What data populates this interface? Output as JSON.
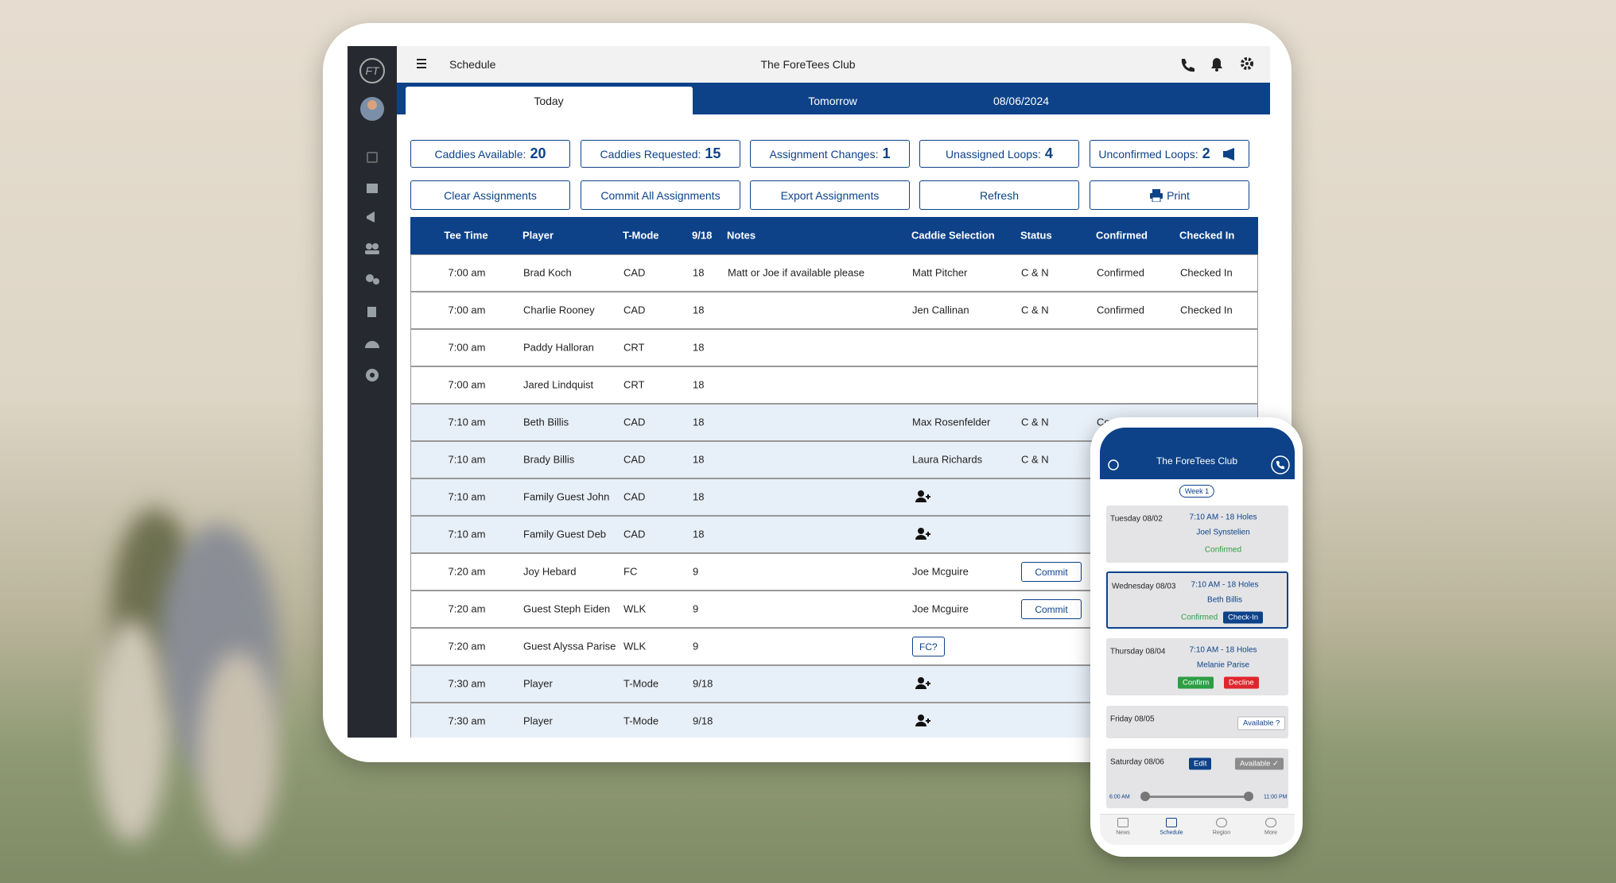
{
  "header": {
    "title": "Schedule",
    "club": "The ForeTees Club"
  },
  "tabs": [
    "Today",
    "Tomorrow",
    "08/06/2024"
  ],
  "stats": [
    {
      "label": "Caddies Available:",
      "value": 20
    },
    {
      "label": "Caddies Requested:",
      "value": 15
    },
    {
      "label": "Assignment Changes:",
      "value": 1
    },
    {
      "label": "Unassigned Loops:",
      "value": 4
    },
    {
      "label": "Unconfirmed Loops:",
      "value": 2
    }
  ],
  "actions": [
    "Clear Assignments",
    "Commit All Assignments",
    "Export Assignments",
    "Refresh",
    "Print"
  ],
  "table": {
    "columns": {
      "time": "Tee Time",
      "player": "Player",
      "mode": "T-Mode",
      "holes": "9/18",
      "notes": "Notes",
      "caddie": "Caddie Selection",
      "status": "Status",
      "confirmed": "Confirmed",
      "checked_in": "Checked In"
    },
    "rows": [
      {
        "time": "7:00 am",
        "player": "Brad Koch",
        "mode": "CAD",
        "holes": "18",
        "notes": "Matt or Joe if available please",
        "caddie": "Matt Pitcher",
        "status": "C & N",
        "confirmed": "Confirmed",
        "checked_in": "Checked In"
      },
      {
        "time": "7:00 am",
        "player": "Charlie Rooney",
        "mode": "CAD",
        "holes": "18",
        "caddie": "Jen Callinan",
        "status": "C & N",
        "confirmed": "Confirmed",
        "checked_in": "Checked In"
      },
      {
        "time": "7:00 am",
        "player": "Paddy Halloran",
        "mode": "CRT",
        "holes": "18"
      },
      {
        "time": "7:00 am",
        "player": "Jared Lindquist",
        "mode": "CRT",
        "holes": "18"
      },
      {
        "time": "7:10 am",
        "player": "Beth Billis",
        "mode": "CAD",
        "holes": "18",
        "caddie": "Max Rosenfelder",
        "status": "C & N",
        "confirmed": "Confirmed",
        "highlight": true
      },
      {
        "time": "7:10 am",
        "player": "Brady Billis",
        "mode": "CAD",
        "holes": "18",
        "caddie": "Laura Richards",
        "status": "C & N",
        "highlight": true
      },
      {
        "time": "7:10 am",
        "player": "Family Guest John",
        "mode": "CAD",
        "holes": "18",
        "add_caddie": true,
        "highlight": true
      },
      {
        "time": "7:10 am",
        "player": "Family Guest Deb",
        "mode": "CAD",
        "holes": "18",
        "add_caddie": true,
        "highlight": true
      },
      {
        "time": "7:20 am",
        "player": "Joy Hebard",
        "mode": "FC",
        "holes": "9",
        "caddie": "Joe Mcguire",
        "status_button": "Commit"
      },
      {
        "time": "7:20 am",
        "player": "Guest Steph Eiden",
        "mode": "WLK",
        "holes": "9",
        "caddie": "Joe Mcguire",
        "status_button": "Commit"
      },
      {
        "time": "7:20 am",
        "player": "Guest Alyssa Parise",
        "mode": "WLK",
        "holes": "9",
        "caddie_button": "FC?"
      },
      {
        "time": "7:30 am",
        "player": "Player",
        "mode": "T-Mode",
        "holes": "9/18",
        "add_caddie": true,
        "highlight": true
      },
      {
        "time": "7:30 am",
        "player": "Player",
        "mode": "T-Mode",
        "holes": "9/18",
        "add_caddie": true,
        "highlight": true
      }
    ]
  },
  "phone": {
    "club": "The ForeTees Club",
    "week": "Week 1",
    "cards": [
      {
        "day": "Tuesday 08/02",
        "time": "7:10 AM - 18 Holes",
        "name": "Joel Synstelien",
        "status": "Confirmed"
      },
      {
        "day": "Wednesday 08/03",
        "time": "7:10 AM - 18 Holes",
        "name": "Beth Billis",
        "status": "Confirmed",
        "buttons": [
          {
            "text": "Check-In",
            "style": "blue"
          }
        ],
        "selected": true
      },
      {
        "day": "Thursday 08/04",
        "time": "7:10 AM - 18 Holes",
        "name": "Melanie Parise",
        "buttons": [
          {
            "text": "Confirm",
            "style": "green"
          },
          {
            "text": "Decline",
            "style": "red"
          }
        ]
      },
      {
        "day": "Friday 08/05",
        "buttons": [
          {
            "text": "Available ?",
            "style": "outline"
          }
        ]
      },
      {
        "day": "Saturday 08/06",
        "buttons": [
          {
            "text": "Edit",
            "style": "blue"
          },
          {
            "text": "Available ✓",
            "style": "gray"
          }
        ],
        "slider": [
          "6:00 AM",
          "11:00 PM"
        ]
      }
    ],
    "nav": [
      "News",
      "Schedule",
      "Region",
      "More"
    ]
  }
}
